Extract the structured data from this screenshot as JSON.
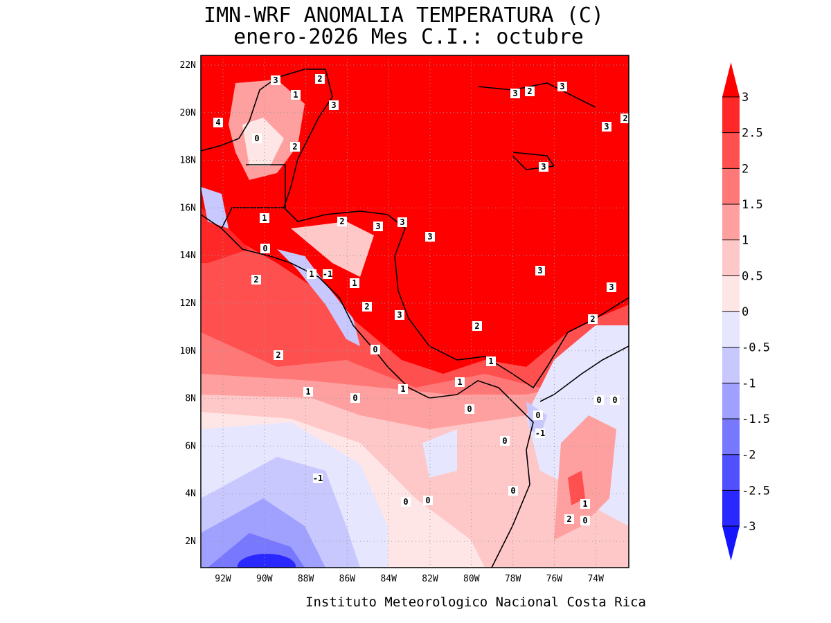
{
  "title": [
    "IMN-WRF  ANOMALIA TEMPERATURA (C)",
    "enero-2026 Mes C.I.: octubre"
  ],
  "lat_labels": [
    "22N",
    "20N",
    "18N",
    "16N",
    "14N",
    "12N",
    "10N",
    "8N",
    "6N",
    "4N",
    "2N"
  ],
  "lon_labels": [
    "92W",
    "90W",
    "88W",
    "86W",
    "84W",
    "82W",
    "80W",
    "78W",
    "76W",
    "74W"
  ],
  "colorbar": {
    "levels": [
      3,
      2.5,
      2,
      1.5,
      1,
      0.5,
      0,
      -0.5,
      -1,
      -1.5,
      -2,
      -2.5,
      -3
    ],
    "colors": [
      "#ff0000",
      "#ff2828",
      "#ff5050",
      "#ff7878",
      "#ffa0a0",
      "#ffc8c8",
      "#ffe6e6",
      "#e6e6ff",
      "#c8c8ff",
      "#a0a0ff",
      "#7878ff",
      "#5050ff",
      "#2828ff",
      "#1414ff"
    ]
  },
  "contour_labels": [
    3,
    2,
    1,
    3,
    4,
    0,
    2,
    3,
    2,
    3,
    3,
    2,
    3,
    1,
    0,
    2,
    3,
    3,
    3,
    2,
    1,
    -1,
    1,
    2,
    3,
    3,
    3,
    2,
    2,
    2,
    0,
    1,
    1,
    0,
    1,
    1,
    0,
    0,
    -1,
    0,
    0,
    0,
    -1,
    0,
    0,
    0,
    1,
    2,
    0
  ],
  "footer": "Instituto Meteorologico Nacional Costa Rica"
}
